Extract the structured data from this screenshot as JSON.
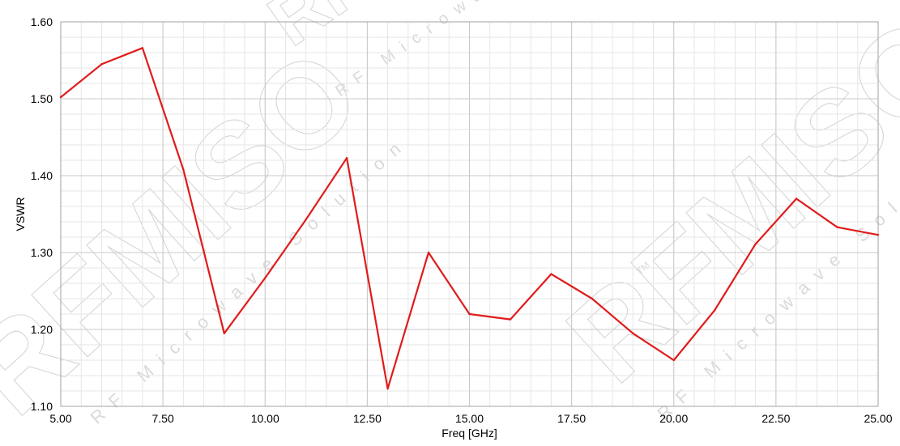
{
  "watermark": {
    "brand": "RFMISO",
    "tagline": "RF Microwave Solution",
    "trademark": "TM"
  },
  "chart_data": {
    "type": "line",
    "title": "",
    "xlabel": "Freq [GHz]",
    "ylabel": "VSWR",
    "xlim": [
      5,
      25
    ],
    "ylim": [
      1.1,
      1.6
    ],
    "x_ticks": [
      "5.00",
      "7.50",
      "10.00",
      "12.50",
      "15.00",
      "17.50",
      "20.00",
      "22.50",
      "25.00"
    ],
    "y_ticks": [
      "1.10",
      "1.20",
      "1.30",
      "1.40",
      "1.50",
      "1.60"
    ],
    "grid": true,
    "series": [
      {
        "color": "#e01b1b",
        "x": [
          5,
          6,
          7,
          8,
          9,
          10,
          11,
          12,
          13,
          14,
          15,
          16,
          17,
          18,
          19,
          20,
          21,
          22,
          23,
          24,
          25
        ],
        "y": [
          1.502,
          1.545,
          1.566,
          1.408,
          1.195,
          1.267,
          1.343,
          1.423,
          1.123,
          1.3,
          1.22,
          1.213,
          1.272,
          1.24,
          1.195,
          1.16,
          1.225,
          1.311,
          1.37,
          1.333,
          1.323
        ]
      }
    ]
  }
}
